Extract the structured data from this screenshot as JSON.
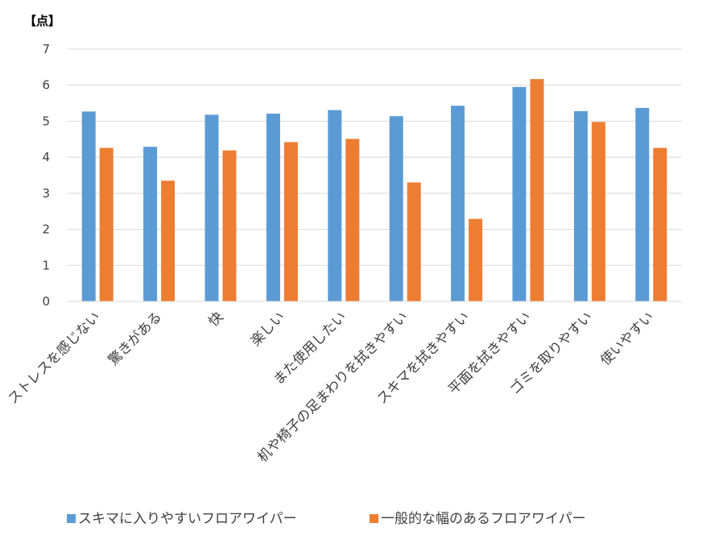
{
  "chart_data": {
    "type": "bar",
    "title": "",
    "ylabel": "【点】",
    "xlabel": "",
    "ylim": [
      0,
      7
    ],
    "yticks": [
      0,
      1,
      2,
      3,
      4,
      5,
      6,
      7
    ],
    "grid": true,
    "legend_position": "bottom",
    "categories": [
      "ストレスを感じない",
      "驚きがある",
      "快",
      "楽しい",
      "また使用したい",
      "机や椅子の足まわりを拭きやすい",
      "スキマを拭きやすい",
      "平面を拭きやすい",
      "ゴミを取りやすい",
      "使いやすい"
    ],
    "series": [
      {
        "name": "スキマに入りやすいフロアワイパー",
        "color": "#5b9bd5",
        "values": [
          5.27,
          4.29,
          5.18,
          5.21,
          5.31,
          5.14,
          5.43,
          5.95,
          5.28,
          5.37
        ]
      },
      {
        "name": "一般的な幅のあるフロアワイパー",
        "color": "#ed7d31",
        "values": [
          4.26,
          3.35,
          4.19,
          4.42,
          4.51,
          3.3,
          2.29,
          6.17,
          4.98,
          4.26
        ]
      }
    ]
  },
  "colors": {
    "gridline": "#d9d9d9",
    "axis": "#d9d9d9",
    "text": "#404040"
  }
}
